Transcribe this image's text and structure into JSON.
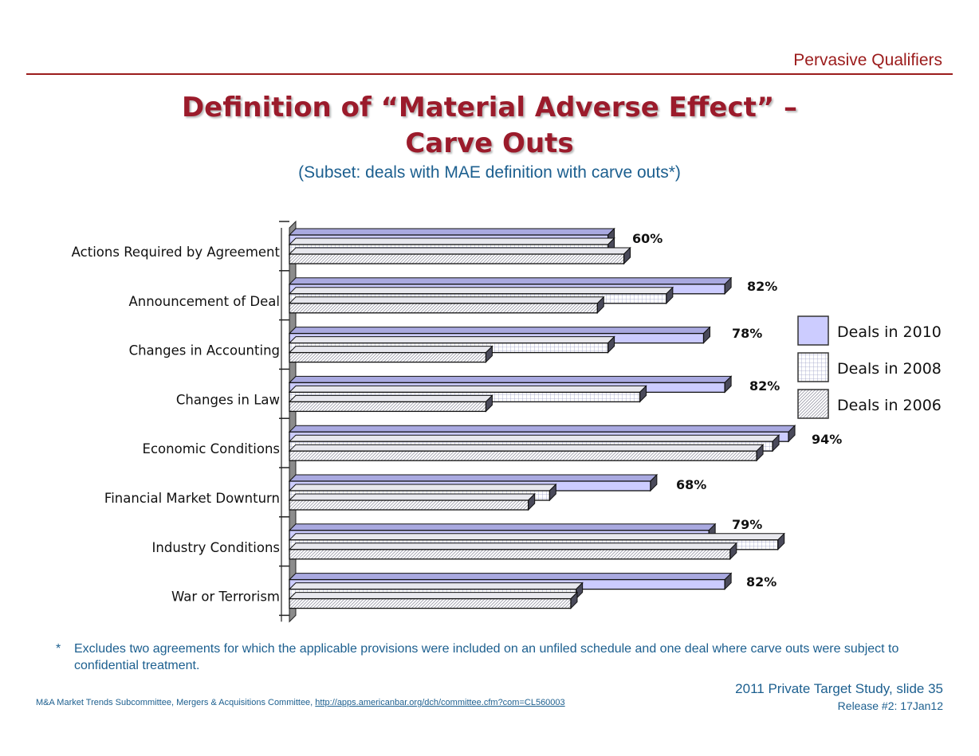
{
  "header": {
    "section_title": "Pervasive Qualifiers",
    "title_line1": "Definition of “Material Adverse Effect” –",
    "title_line2": "Carve Outs",
    "subtitle": "(Subset:  deals with MAE definition with carve outs*)"
  },
  "chart_data": {
    "type": "bar",
    "orientation": "horizontal",
    "categories": [
      "Actions Required by Agreement",
      "Announcement of Deal",
      "Changes in Accounting",
      "Changes in Law",
      "Economic Conditions",
      "Financial Market Downturn",
      "Industry Conditions",
      "War or Terrorism"
    ],
    "series": [
      {
        "name": "Deals in 2010",
        "values": [
          60,
          82,
          78,
          82,
          94,
          68,
          79,
          82
        ],
        "labels": [
          "60%",
          "82%",
          "78%",
          "82%",
          "94%",
          "68%",
          "79%",
          "82%"
        ],
        "fill": "#ccccff",
        "pattern": "solid"
      },
      {
        "name": "Deals in 2008",
        "values": [
          60,
          71,
          60,
          66,
          91,
          49,
          92,
          54
        ],
        "fill": "#ffffff",
        "pattern": "grid"
      },
      {
        "name": "Deals in 2006",
        "values": [
          63,
          58,
          37,
          37,
          88,
          45,
          83,
          53
        ],
        "fill": "#ffffff",
        "pattern": "diagonal"
      }
    ],
    "xlim": [
      0,
      100
    ],
    "legend_position": "right",
    "grid": false
  },
  "footnote": {
    "star": "*",
    "text": "Excludes two agreements for which the applicable provisions were included on an unfiled schedule and one deal where carve outs were subject to confidential treatment."
  },
  "footer": {
    "study": "2011 Private Target Study, slide 35",
    "release": "Release #2:  17Jan12",
    "credits": "M&A Market Trends Subcommittee, Mergers & Acquisitions Committee, ",
    "credits_link": "http://apps.americanbar.org/dch/committee.cfm?com=CL560003"
  }
}
